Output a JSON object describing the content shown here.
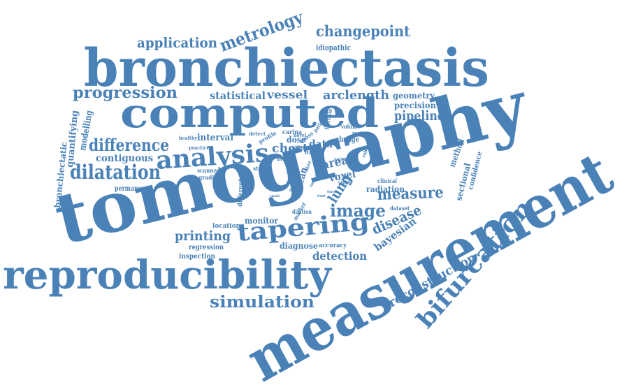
{
  "color": "#4a82b8",
  "words": {
    "tomography": "tomography",
    "measurement": "measurement",
    "bronchiectasis": "bronchiectasis",
    "computed": "computed",
    "reproducibility": "reproducibility",
    "analysis": "analysis",
    "tapering": "tapering",
    "bifurcation": "bifurcation",
    "dilatation": "dilatation",
    "difference": "difference",
    "progression": "progression",
    "metrology": "metrology",
    "application": "application",
    "changepoint": "changepoint",
    "simulation": "simulation",
    "measure": "measure",
    "image": "image",
    "chest": "chest",
    "printing": "printing",
    "reconstruction": "reconstruction",
    "disease": "disease",
    "pipeline": "pipeline",
    "vessel": "vessel",
    "arclength": "arclength",
    "statistical": "statistical",
    "detection": "detection",
    "lung": "lung",
    "bayesian": "bayesian",
    "contiguous": "contiguous",
    "geometry": "geometry",
    "precision": "precision",
    "interval": "interval",
    "data": "data",
    "area": "area",
    "voxel": "voxel",
    "radiation": "radiation",
    "monitor": "monitor",
    "diagnose": "diagnose",
    "scan": "scan",
    "quantifying": "quantifying",
    "modelling": "modelling",
    "bronchiectatic": "bronchiectatic",
    "method": "method",
    "sectional": "sectional",
    "confidence": "confidence",
    "idiopathic": "idiopathic",
    "permanent": "permanent",
    "regression": "regression",
    "inspection": "inspection",
    "location": "location",
    "accuracy": "accuracy",
    "healthy": "healthy",
    "practice": "practice",
    "scanner": "scanner",
    "gradient": "gradient",
    "stock": "stock",
    "different": "different",
    "dose": "dose",
    "carina": "carina",
    "detect": "detect",
    "profile": "profile",
    "effect": "effect",
    "novel": "novel",
    "cross": "cross",
    "track": "track",
    "patient": "patient",
    "fibrosis": "fibrosis",
    "volume": "volume",
    "change": "change",
    "region": "region",
    "robust": "robust",
    "clinical": "clinical",
    "visible": "visible",
    "noise": "noise",
    "dataset": "dataset",
    "market": "market",
    "dilation": "dilation",
    "distal": "distal",
    "point": "point",
    "size": "size",
    "smooth": "smooth",
    "small": "small",
    "result": "result",
    "three": "three",
    "two": "two",
    "airway": "airway",
    "limit": "limit"
  }
}
